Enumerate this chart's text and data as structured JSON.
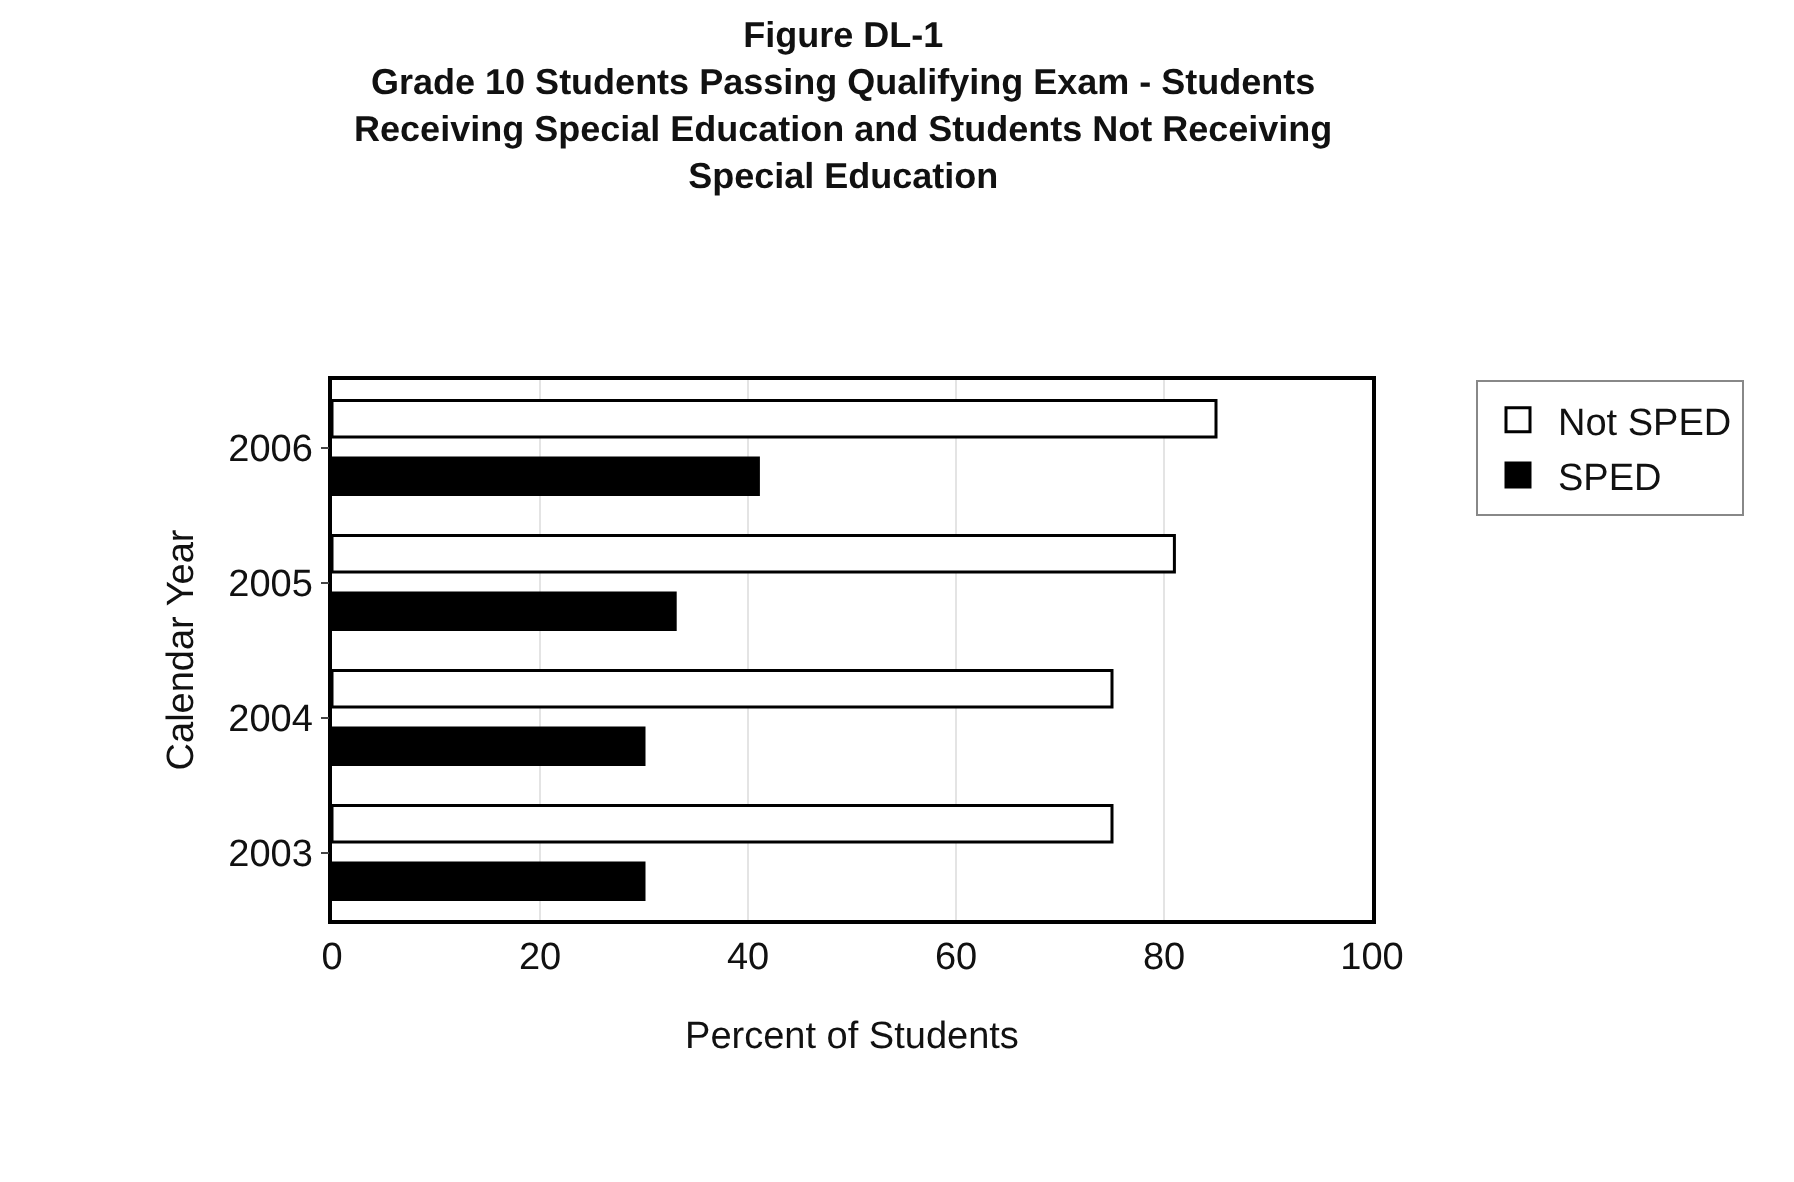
{
  "chart_data": {
    "type": "bar",
    "orientation": "horizontal",
    "title": "Figure DL-1",
    "subtitle": "Grade 10 Students Passing Qualifying Exam - Students Receiving Special Education and Students Not Receiving Special Education",
    "xlabel": "Percent of Students",
    "ylabel": "Calendar Year",
    "categories": [
      "2006",
      "2005",
      "2004",
      "2003"
    ],
    "series": [
      {
        "name": "Not SPED",
        "color": "#ffffff",
        "values": [
          85,
          81,
          75,
          75
        ]
      },
      {
        "name": "SPED",
        "color": "#000000",
        "values": [
          41,
          33,
          30,
          30
        ]
      }
    ],
    "xlim": [
      0,
      100
    ],
    "xticks": [
      0,
      20,
      40,
      60,
      80,
      100
    ],
    "grid": "x",
    "legend": "right"
  }
}
